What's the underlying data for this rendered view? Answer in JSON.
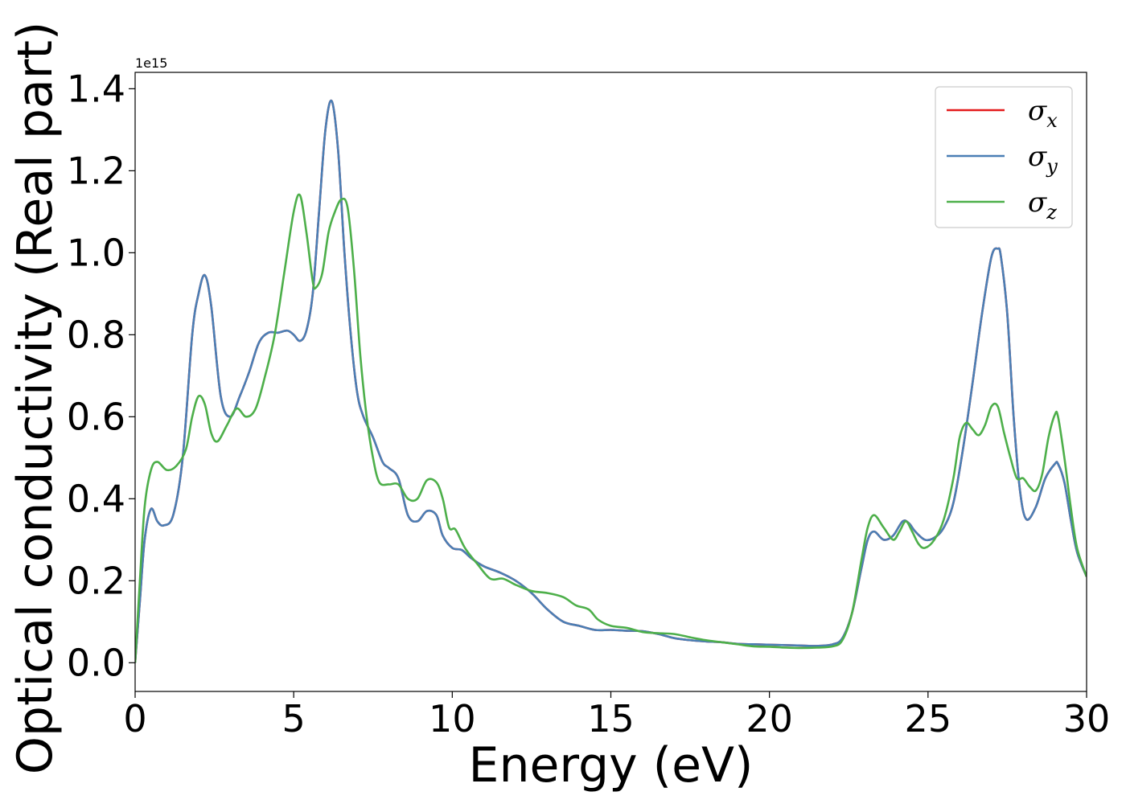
{
  "chart_data": {
    "type": "line",
    "title": "",
    "xlabel": "Energy (eV)",
    "ylabel": "Optical conductivity (Real part)",
    "y_offset_text": "1e15",
    "xlim": [
      0,
      30
    ],
    "ylim": [
      -0.07,
      1.44
    ],
    "x_ticks": [
      0,
      5,
      10,
      15,
      20,
      25,
      30
    ],
    "x_tick_labels": [
      "0",
      "5",
      "10",
      "15",
      "20",
      "25",
      "30"
    ],
    "y_ticks": [
      0.0,
      0.2,
      0.4,
      0.6,
      0.8,
      1.0,
      1.2,
      1.4
    ],
    "y_tick_labels": [
      "0.0",
      "0.2",
      "0.4",
      "0.6",
      "0.8",
      "1.0",
      "1.2",
      "1.4"
    ],
    "grid": false,
    "legend_position": "top-right",
    "series": [
      {
        "name": "σx",
        "symbol": "σ",
        "subscript": "x",
        "color": "#e41a1c",
        "x": [
          0,
          0.15,
          0.3,
          0.5,
          0.7,
          0.9,
          1.2,
          1.5,
          1.8,
          2.0,
          2.2,
          2.4,
          2.7,
          3.0,
          3.3,
          3.6,
          3.9,
          4.2,
          4.5,
          4.8,
          5.0,
          5.2,
          5.4,
          5.6,
          5.8,
          6.0,
          6.2,
          6.4,
          6.6,
          6.8,
          7.0,
          7.2,
          7.5,
          7.8,
          8.0,
          8.3,
          8.6,
          8.9,
          9.2,
          9.5,
          9.7,
          10.0,
          10.3,
          10.6,
          11.0,
          11.5,
          12.0,
          12.5,
          13.0,
          13.5,
          14.0,
          14.5,
          15.0,
          15.5,
          16.0,
          16.5,
          17.0,
          17.5,
          18.0,
          18.5,
          19.0,
          19.5,
          20.0,
          20.5,
          21.0,
          21.5,
          22.0,
          22.3,
          22.6,
          22.9,
          23.1,
          23.3,
          23.6,
          23.9,
          24.2,
          24.4,
          24.6,
          24.9,
          25.2,
          25.5,
          25.8,
          26.1,
          26.4,
          26.7,
          27.0,
          27.2,
          27.3,
          27.5,
          27.7,
          27.9,
          28.1,
          28.4,
          28.7,
          29.0,
          29.1,
          29.3,
          29.5,
          29.7,
          30.0
        ],
        "values": [
          0.0,
          0.15,
          0.3,
          0.375,
          0.345,
          0.335,
          0.36,
          0.5,
          0.8,
          0.9,
          0.945,
          0.87,
          0.65,
          0.6,
          0.65,
          0.71,
          0.78,
          0.805,
          0.805,
          0.81,
          0.8,
          0.785,
          0.81,
          0.9,
          1.1,
          1.3,
          1.37,
          1.25,
          1.0,
          0.8,
          0.66,
          0.6,
          0.55,
          0.49,
          0.475,
          0.45,
          0.36,
          0.345,
          0.37,
          0.36,
          0.31,
          0.28,
          0.275,
          0.255,
          0.235,
          0.22,
          0.2,
          0.17,
          0.13,
          0.1,
          0.09,
          0.08,
          0.08,
          0.078,
          0.077,
          0.07,
          0.06,
          0.055,
          0.052,
          0.05,
          0.046,
          0.045,
          0.044,
          0.043,
          0.042,
          0.041,
          0.045,
          0.06,
          0.12,
          0.23,
          0.3,
          0.32,
          0.3,
          0.31,
          0.345,
          0.34,
          0.32,
          0.3,
          0.305,
          0.33,
          0.39,
          0.52,
          0.68,
          0.85,
          0.99,
          1.01,
          0.99,
          0.85,
          0.6,
          0.42,
          0.35,
          0.38,
          0.45,
          0.485,
          0.485,
          0.44,
          0.35,
          0.27,
          0.21
        ]
      },
      {
        "name": "σy",
        "symbol": "σ",
        "subscript": "y",
        "color": "#4a7fb5",
        "x": [
          0,
          0.15,
          0.3,
          0.5,
          0.7,
          0.9,
          1.2,
          1.5,
          1.8,
          2.0,
          2.2,
          2.4,
          2.7,
          3.0,
          3.3,
          3.6,
          3.9,
          4.2,
          4.5,
          4.8,
          5.0,
          5.2,
          5.4,
          5.6,
          5.8,
          6.0,
          6.2,
          6.4,
          6.6,
          6.8,
          7.0,
          7.2,
          7.5,
          7.8,
          8.0,
          8.3,
          8.6,
          8.9,
          9.2,
          9.5,
          9.7,
          10.0,
          10.3,
          10.6,
          11.0,
          11.5,
          12.0,
          12.5,
          13.0,
          13.5,
          14.0,
          14.5,
          15.0,
          15.5,
          16.0,
          16.5,
          17.0,
          17.5,
          18.0,
          18.5,
          19.0,
          19.5,
          20.0,
          20.5,
          21.0,
          21.5,
          22.0,
          22.3,
          22.6,
          22.9,
          23.1,
          23.3,
          23.6,
          23.9,
          24.2,
          24.4,
          24.6,
          24.9,
          25.2,
          25.5,
          25.8,
          26.1,
          26.4,
          26.7,
          27.0,
          27.2,
          27.3,
          27.5,
          27.7,
          27.9,
          28.1,
          28.4,
          28.7,
          29.0,
          29.1,
          29.3,
          29.5,
          29.7,
          30.0
        ],
        "values": [
          0.0,
          0.15,
          0.3,
          0.375,
          0.345,
          0.335,
          0.36,
          0.5,
          0.8,
          0.9,
          0.945,
          0.87,
          0.65,
          0.6,
          0.65,
          0.71,
          0.78,
          0.805,
          0.805,
          0.81,
          0.8,
          0.785,
          0.81,
          0.9,
          1.1,
          1.3,
          1.37,
          1.25,
          1.0,
          0.8,
          0.66,
          0.6,
          0.55,
          0.49,
          0.475,
          0.45,
          0.36,
          0.345,
          0.37,
          0.36,
          0.31,
          0.28,
          0.275,
          0.255,
          0.235,
          0.22,
          0.2,
          0.17,
          0.13,
          0.1,
          0.09,
          0.08,
          0.08,
          0.078,
          0.077,
          0.07,
          0.06,
          0.055,
          0.052,
          0.05,
          0.046,
          0.045,
          0.044,
          0.043,
          0.042,
          0.041,
          0.045,
          0.06,
          0.12,
          0.23,
          0.3,
          0.32,
          0.3,
          0.31,
          0.345,
          0.34,
          0.32,
          0.3,
          0.305,
          0.33,
          0.39,
          0.52,
          0.68,
          0.85,
          0.99,
          1.01,
          0.99,
          0.85,
          0.6,
          0.42,
          0.35,
          0.38,
          0.45,
          0.485,
          0.485,
          0.44,
          0.35,
          0.27,
          0.21
        ]
      },
      {
        "name": "σz",
        "symbol": "σ",
        "subscript": "z",
        "color": "#4daf4a",
        "x": [
          0,
          0.15,
          0.3,
          0.5,
          0.7,
          1.0,
          1.3,
          1.6,
          1.8,
          2.0,
          2.2,
          2.4,
          2.6,
          2.9,
          3.2,
          3.5,
          3.8,
          4.1,
          4.4,
          4.7,
          5.0,
          5.2,
          5.4,
          5.6,
          5.7,
          5.9,
          6.1,
          6.3,
          6.5,
          6.7,
          6.9,
          7.1,
          7.3,
          7.5,
          7.7,
          8.0,
          8.3,
          8.6,
          8.9,
          9.2,
          9.5,
          9.7,
          9.9,
          10.1,
          10.4,
          10.8,
          11.2,
          11.6,
          12.0,
          12.5,
          13.0,
          13.5,
          13.9,
          14.3,
          14.6,
          15.0,
          15.5,
          16.0,
          16.5,
          17.0,
          17.5,
          18.0,
          18.5,
          19.0,
          19.5,
          20.0,
          20.5,
          21.0,
          21.5,
          22.0,
          22.3,
          22.6,
          22.9,
          23.1,
          23.3,
          23.6,
          23.9,
          24.1,
          24.3,
          24.5,
          24.7,
          24.9,
          25.2,
          25.5,
          25.8,
          26.0,
          26.2,
          26.4,
          26.6,
          26.8,
          27.0,
          27.2,
          27.4,
          27.6,
          27.8,
          28.0,
          28.2,
          28.4,
          28.6,
          28.8,
          29.0,
          29.1,
          29.3,
          29.5,
          29.7,
          30.0
        ],
        "values": [
          0.0,
          0.2,
          0.38,
          0.47,
          0.49,
          0.47,
          0.48,
          0.52,
          0.6,
          0.65,
          0.63,
          0.56,
          0.54,
          0.58,
          0.62,
          0.6,
          0.62,
          0.7,
          0.8,
          0.95,
          1.1,
          1.14,
          1.05,
          0.93,
          0.915,
          0.95,
          1.05,
          1.1,
          1.13,
          1.11,
          0.96,
          0.75,
          0.6,
          0.5,
          0.44,
          0.435,
          0.435,
          0.4,
          0.4,
          0.445,
          0.44,
          0.4,
          0.33,
          0.325,
          0.28,
          0.24,
          0.205,
          0.205,
          0.19,
          0.175,
          0.17,
          0.16,
          0.14,
          0.13,
          0.105,
          0.09,
          0.085,
          0.075,
          0.072,
          0.07,
          0.062,
          0.055,
          0.05,
          0.045,
          0.04,
          0.039,
          0.037,
          0.036,
          0.037,
          0.04,
          0.055,
          0.12,
          0.25,
          0.33,
          0.36,
          0.33,
          0.3,
          0.32,
          0.345,
          0.32,
          0.29,
          0.28,
          0.3,
          0.35,
          0.45,
          0.55,
          0.585,
          0.57,
          0.555,
          0.58,
          0.625,
          0.625,
          0.56,
          0.5,
          0.45,
          0.45,
          0.43,
          0.42,
          0.46,
          0.55,
          0.605,
          0.6,
          0.5,
          0.38,
          0.28,
          0.21
        ]
      }
    ]
  }
}
